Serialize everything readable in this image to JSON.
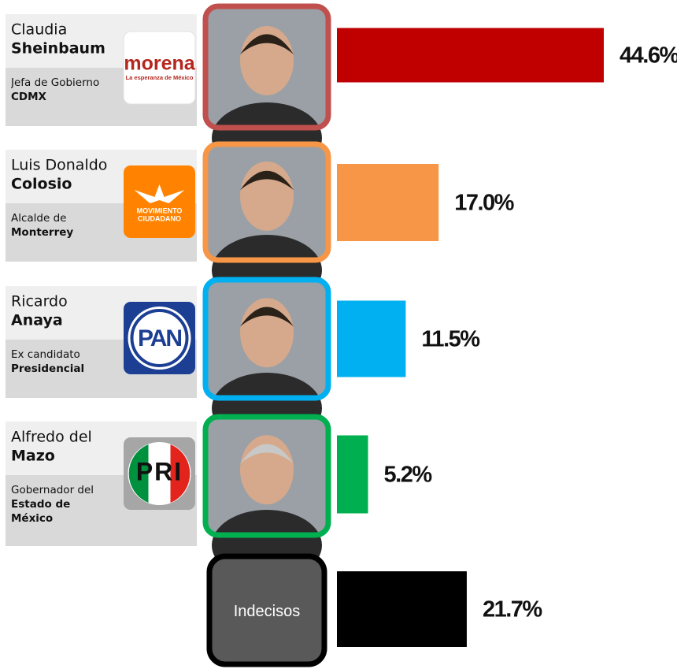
{
  "chart_data": {
    "type": "bar",
    "orientation": "horizontal",
    "categories": [
      {
        "first": "Claudia",
        "last": "Sheinbaum",
        "role": "Jefa de Gobierno",
        "place": "CDMX",
        "party": "morena",
        "party_sub": "La esperanza de México",
        "logo_color": "#ffffff"
      },
      {
        "first": "Luis Donaldo",
        "last": "Colosio",
        "role": "Alcalde de",
        "place": "Monterrey",
        "party": "MOVIMIENTO",
        "party_sub": "CIUDADANO",
        "logo_color": "#ff8300"
      },
      {
        "first": "Ricardo",
        "last": "Anaya",
        "role": "Ex candidato",
        "place": "Presidencial",
        "party": "PAN",
        "logo_color": "#1c3f94"
      },
      {
        "first": "Alfredo del",
        "last": "Mazo",
        "role": "Gobernador del",
        "place": "Estado de México",
        "party": "PRI",
        "logo_color": "#a6a6a6"
      },
      {
        "label": "Indecisos"
      }
    ],
    "values": [
      44.6,
      17.0,
      11.5,
      5.2,
      21.7
    ],
    "value_labels": [
      "44.6%",
      "17.0%",
      "11.5%",
      "5.2%",
      "21.7%"
    ],
    "colors": [
      "#c00000",
      "#f79646",
      "#00b0f0",
      "#00b050",
      "#000000"
    ],
    "frame_colors": [
      "#c0504d",
      "#f79646",
      "#00b0f0",
      "#00b050",
      "#000000"
    ]
  }
}
